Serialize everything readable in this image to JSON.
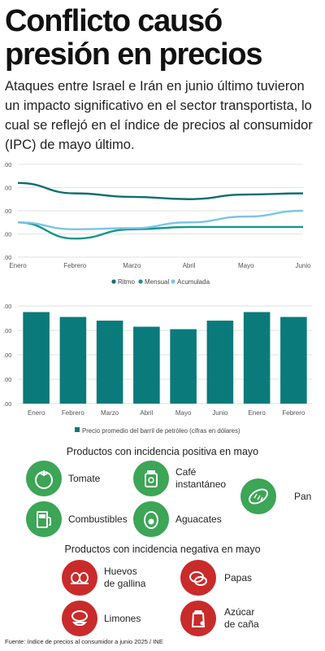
{
  "header": {
    "title": "Conflicto causó presión en precios",
    "subtitle": "Ataques entre Israel e Irán en junio último tuvieron un impacto significativo en el sector transportista, lo cual se reflejó en el índice de precios al consumidor (IPC) de mayo último."
  },
  "colors": {
    "ritmo": "#0e6e6e",
    "mensual": "#12968c",
    "acumulada": "#7cc4e8",
    "bars": "#0b7a7a",
    "positive": "#3ca556",
    "negative": "#c92b2b"
  },
  "chart_data": [
    {
      "type": "line",
      "x": [
        "Enero",
        "Febrero",
        "Marzo",
        "Abril",
        "Mayo",
        "Junio"
      ],
      "y_tick_labels": [
        ".00",
        ".00",
        ".00",
        ".00",
        ".00"
      ],
      "ylim": [
        0,
        4
      ],
      "series": [
        {
          "name": "Ritmo",
          "values": [
            3.2,
            2.75,
            2.6,
            2.5,
            2.7,
            2.75
          ]
        },
        {
          "name": "Mensual",
          "values": [
            1.5,
            0.8,
            1.2,
            1.3,
            1.3,
            1.3
          ]
        },
        {
          "name": "Acumulada",
          "values": [
            1.5,
            1.2,
            1.25,
            1.5,
            1.75,
            2.0
          ]
        }
      ],
      "legend": "bottom",
      "grid": true
    },
    {
      "type": "bar",
      "categories": [
        "Enero",
        "Febrero",
        "Marzo",
        "Abril",
        "Mayo",
        "Junio",
        "Enero",
        "Febrero"
      ],
      "values": [
        75,
        71,
        68,
        63,
        61,
        68,
        75,
        71
      ],
      "y_tick_labels": [
        ".00",
        ".00",
        ".00",
        ".00",
        ".00"
      ],
      "ylim": [
        0,
        80
      ],
      "series_name": "Precio promedio del barril de petróleo (cifras en dólares)",
      "legend": "bottom",
      "grid": true
    }
  ],
  "positive": {
    "title": "Productos con incidencia positiva en mayo",
    "items": [
      {
        "label": "Tomate",
        "icon": "tomato-icon"
      },
      {
        "label": "Café\ninstantáneo",
        "icon": "coffee-icon"
      },
      {
        "label": "Pan",
        "icon": "bread-icon"
      },
      {
        "label": "Combustibles",
        "icon": "fuel-icon"
      },
      {
        "label": "Aguacates",
        "icon": "avocado-icon"
      }
    ]
  },
  "negative": {
    "title": "Productos con incidencia negativa en mayo",
    "items": [
      {
        "label": "Huevos\nde gallina",
        "icon": "eggs-icon"
      },
      {
        "label": "Papas",
        "icon": "potato-icon"
      },
      {
        "label": "Limones",
        "icon": "lemon-icon"
      },
      {
        "label": "Azúcar\nde caña",
        "icon": "sugar-icon"
      }
    ]
  },
  "footer": {
    "source": "Fuente: índice de precios al consumidor a junio 2025 / INE"
  }
}
